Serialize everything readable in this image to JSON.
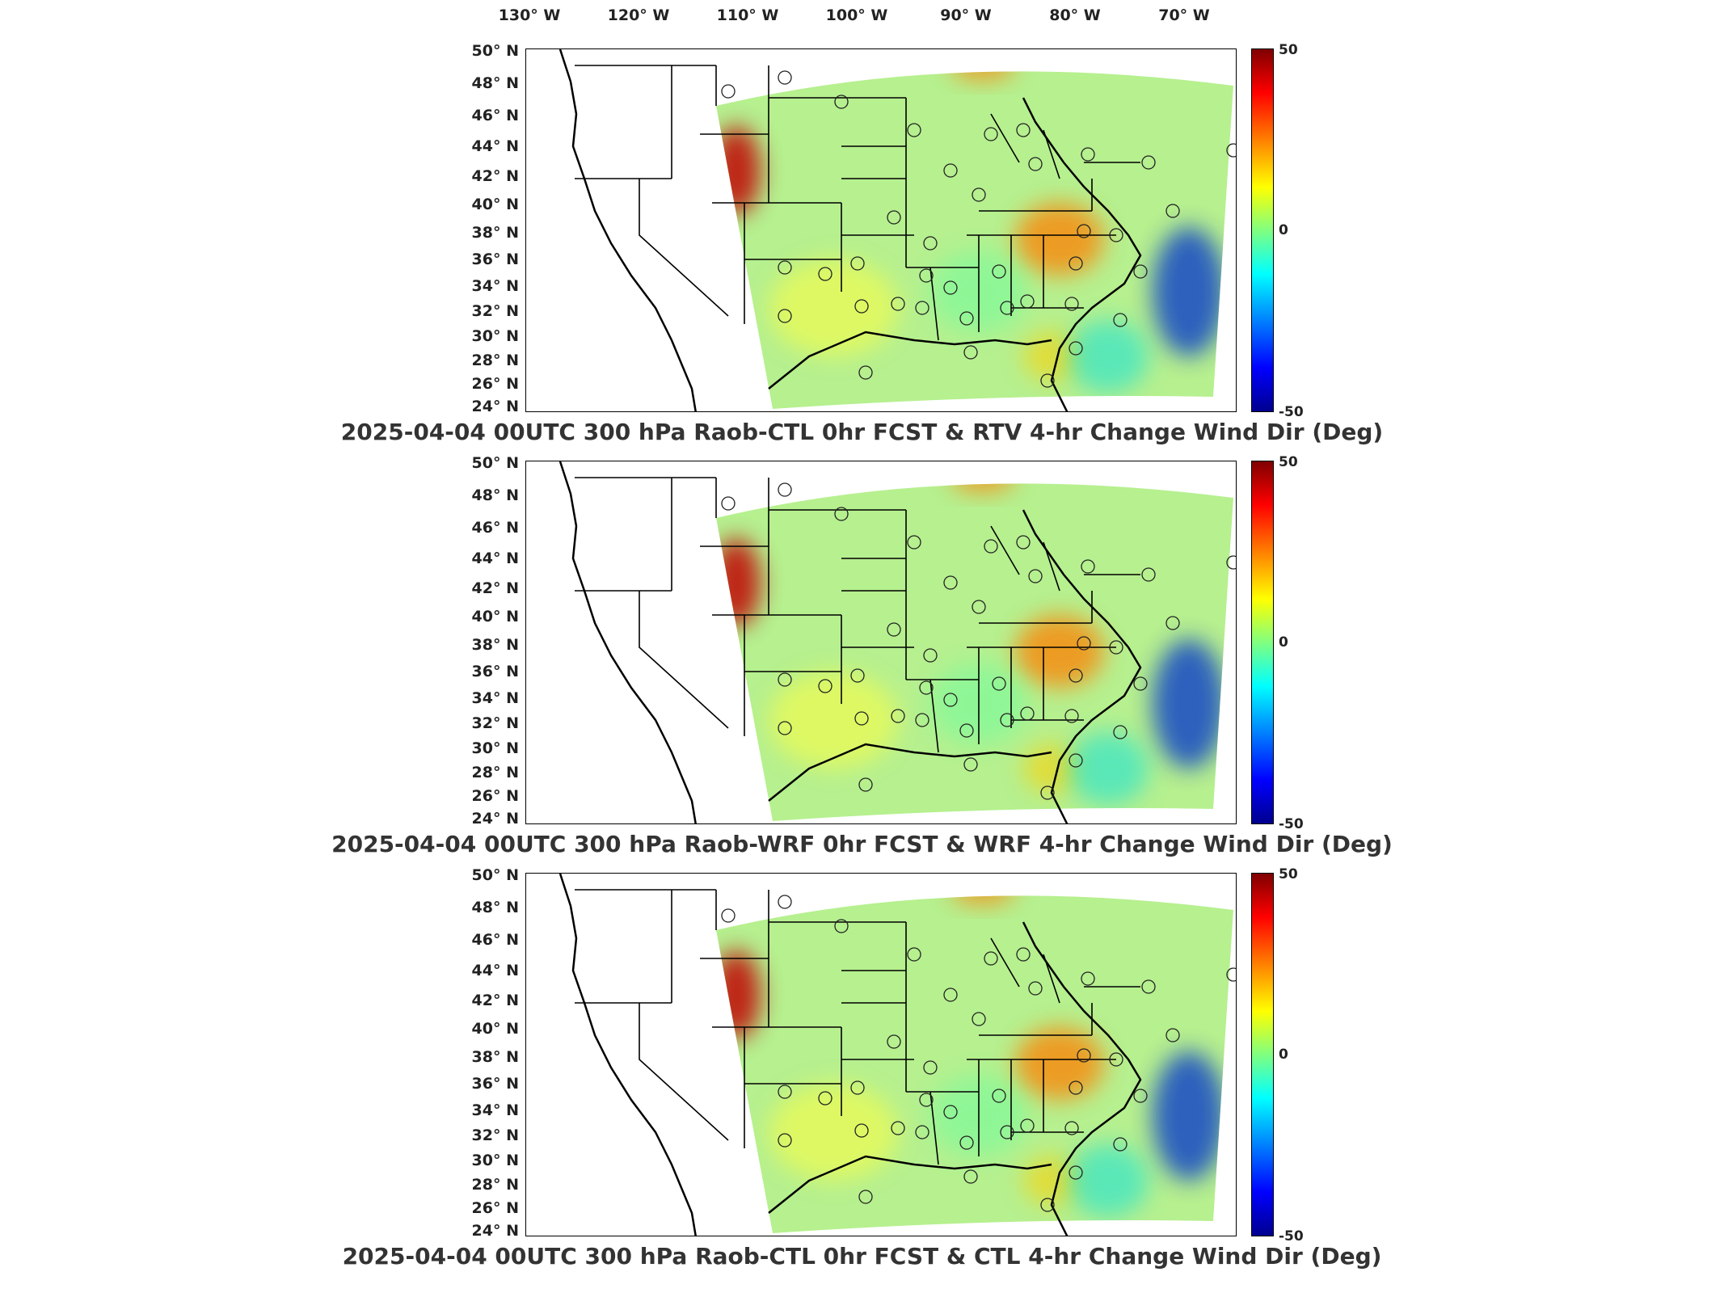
{
  "lon_labels": [
    "130° W",
    "120° W",
    "110° W",
    "100° W",
    "90° W",
    "80° W",
    "70° W"
  ],
  "lat_labels": [
    "50° N",
    "48° N",
    "46° N",
    "44° N",
    "42° N",
    "40° N",
    "38° N",
    "36° N",
    "34° N",
    "32° N",
    "30° N",
    "28° N",
    "26° N",
    "24° N"
  ],
  "colorbar": {
    "max_label": "50",
    "mid_label": "0",
    "min_label": "-50",
    "colors": [
      "#800000",
      "#ff0000",
      "#ff8000",
      "#ffff00",
      "#80ff80",
      "#00ffff",
      "#0080ff",
      "#0000ff",
      "#00008f"
    ]
  },
  "panels": [
    {
      "title": "2025-04-04 00UTC 300 hPa Raob-CTL 0hr FCST & RTV 4-hr Change Wind Dir (Deg)"
    },
    {
      "title": "2025-04-04 00UTC 300 hPa Raob-WRF 0hr FCST & WRF 4-hr Change Wind Dir (Deg)"
    },
    {
      "title": "2025-04-04 00UTC 300 hPa Raob-CTL 0hr FCST & CTL 4-hr Change Wind Dir (Deg)"
    }
  ],
  "stations_icon": "circle-marker-icon"
}
